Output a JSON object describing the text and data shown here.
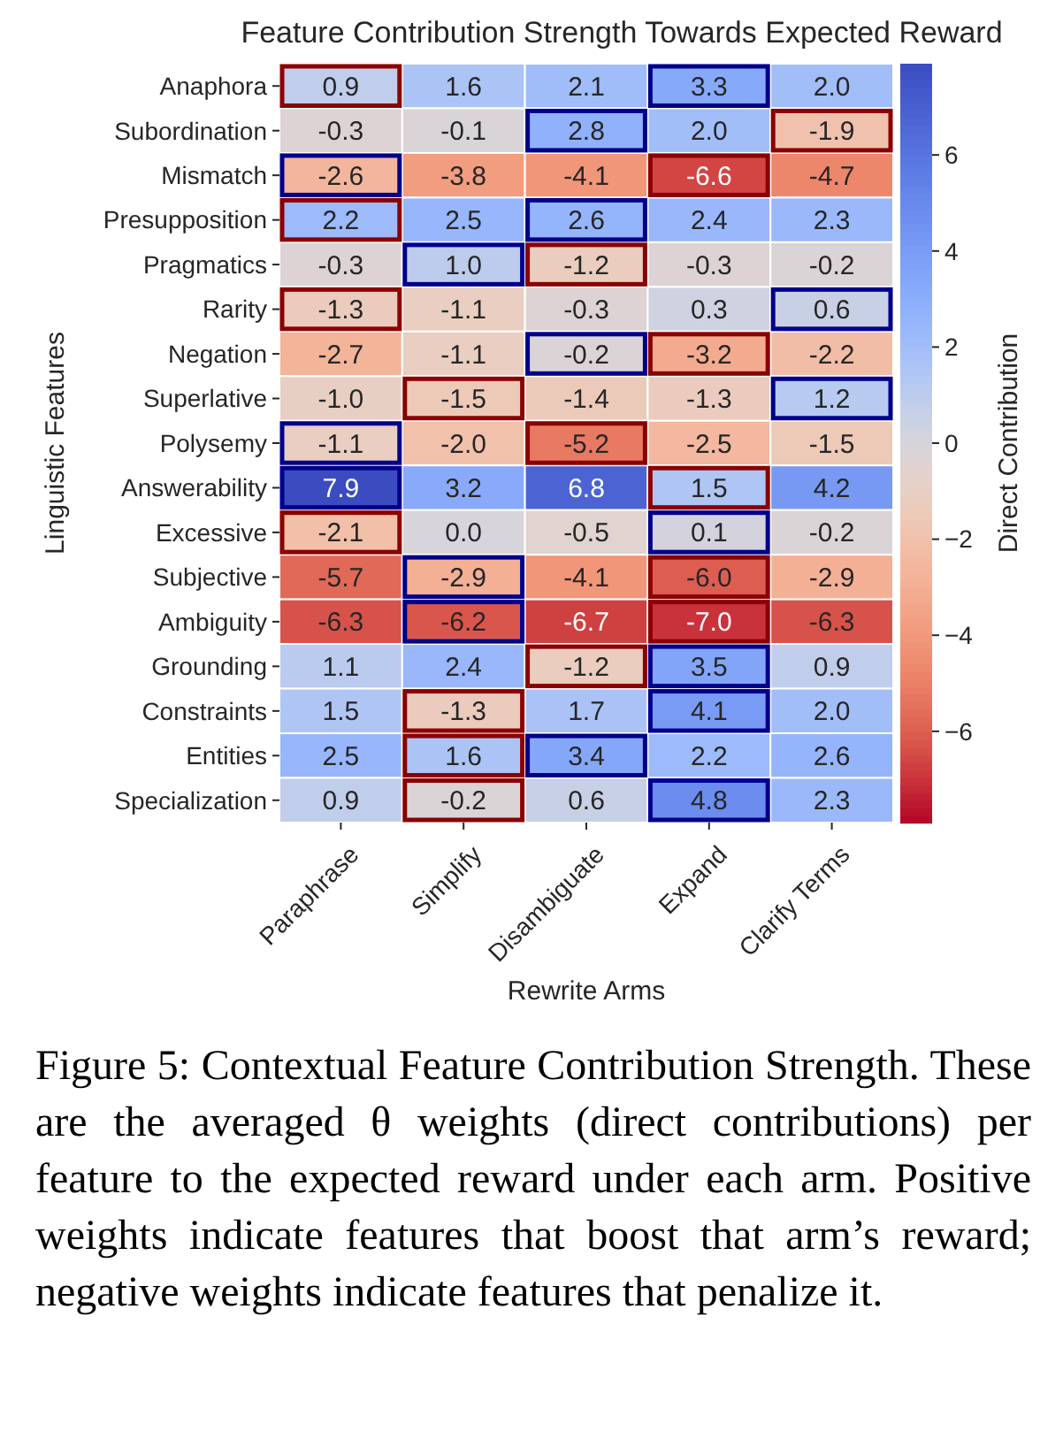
{
  "chart_data": {
    "type": "heatmap",
    "title": "Feature Contribution Strength Towards Expected Reward",
    "xlabel": "Rewrite Arms",
    "ylabel": "Linguistic Features",
    "clabel": "Direct Contribution",
    "categories": [
      "Paraphrase",
      "Simplify",
      "Disambiguate",
      "Expand",
      "Clarify Terms"
    ],
    "y_categories": [
      "Anaphora",
      "Subordination",
      "Mismatch",
      "Presupposition",
      "Pragmatics",
      "Rarity",
      "Negation",
      "Superlative",
      "Polysemy",
      "Answerability",
      "Excessive",
      "Subjective",
      "Ambiguity",
      "Grounding",
      "Constraints",
      "Entities",
      "Specialization"
    ],
    "cells": [
      [
        0.9,
        1.6,
        2.1,
        3.3,
        2.0
      ],
      [
        -0.3,
        -0.1,
        2.8,
        2.0,
        -1.9
      ],
      [
        -2.6,
        -3.8,
        -4.1,
        -6.6,
        -4.7
      ],
      [
        2.2,
        2.5,
        2.6,
        2.4,
        2.3
      ],
      [
        -0.3,
        1.0,
        -1.2,
        -0.3,
        -0.2
      ],
      [
        -1.3,
        -1.1,
        -0.3,
        0.3,
        0.6
      ],
      [
        -2.7,
        -1.1,
        -0.2,
        -3.2,
        -2.2
      ],
      [
        -1.0,
        -1.5,
        -1.4,
        -1.3,
        1.2
      ],
      [
        -1.1,
        -2.0,
        -5.2,
        -2.5,
        -1.5
      ],
      [
        7.9,
        3.2,
        6.8,
        1.5,
        4.2
      ],
      [
        -2.1,
        0.0,
        -0.5,
        0.1,
        -0.2
      ],
      [
        -5.7,
        -2.9,
        -4.1,
        -6.0,
        -2.9
      ],
      [
        -6.3,
        -6.2,
        -6.7,
        -7.0,
        -6.3
      ],
      [
        1.1,
        2.4,
        -1.2,
        3.5,
        0.9
      ],
      [
        1.5,
        -1.3,
        1.7,
        4.1,
        2.0
      ],
      [
        2.5,
        1.6,
        3.4,
        2.2,
        2.6
      ],
      [
        0.9,
        -0.2,
        0.6,
        4.8,
        2.3
      ]
    ],
    "data_labels": true,
    "cell_labels": [
      [
        "0.9",
        "1.6",
        "2.1",
        "3.3",
        "2.0"
      ],
      [
        "-0.3",
        "-0.1",
        "2.8",
        "2.0",
        "-1.9"
      ],
      [
        "-2.6",
        "-3.8",
        "-4.1",
        "-6.6",
        "-4.7"
      ],
      [
        "2.2",
        "2.5",
        "2.6",
        "2.4",
        "2.3"
      ],
      [
        "-0.3",
        "1.0",
        "-1.2",
        "-0.3",
        "-0.2"
      ],
      [
        "-1.3",
        "-1.1",
        "-0.3",
        "0.3",
        "0.6"
      ],
      [
        "-2.7",
        "-1.1",
        "-0.2",
        "-3.2",
        "-2.2"
      ],
      [
        "-1.0",
        "-1.5",
        "-1.4",
        "-1.3",
        "1.2"
      ],
      [
        "-1.1",
        "-2.0",
        "-5.2",
        "-2.5",
        "-1.5"
      ],
      [
        "7.9",
        "3.2",
        "6.8",
        "1.5",
        "4.2"
      ],
      [
        "-2.1",
        "0.0",
        "-0.5",
        "0.1",
        "-0.2"
      ],
      [
        "-5.7",
        "-2.9",
        "-4.1",
        "-6.0",
        "-2.9"
      ],
      [
        "-6.3",
        "-6.2",
        "-6.7",
        "-7.0",
        "-6.3"
      ],
      [
        "1.1",
        "2.4",
        "-1.2",
        "3.5",
        "0.9"
      ],
      [
        "1.5",
        "-1.3",
        "1.7",
        "4.1",
        "2.0"
      ],
      [
        "2.5",
        "1.6",
        "3.4",
        "2.2",
        "2.6"
      ],
      [
        "0.9",
        "-0.2",
        "0.6",
        "4.8",
        "2.3"
      ]
    ],
    "clim": [
      -7.9,
      7.9
    ],
    "cticks": [
      -6,
      -4,
      -2,
      0,
      2,
      4,
      6
    ],
    "annotations": [
      "Figure 5: Contextual Feature Contribution Strength. These are the averaged θ weights (direct contributions) per feature to the expected reward under each arm. Positive weights indicate features that boost that arm’s reward; negative weights indicate features that penalize it."
    ]
  }
}
